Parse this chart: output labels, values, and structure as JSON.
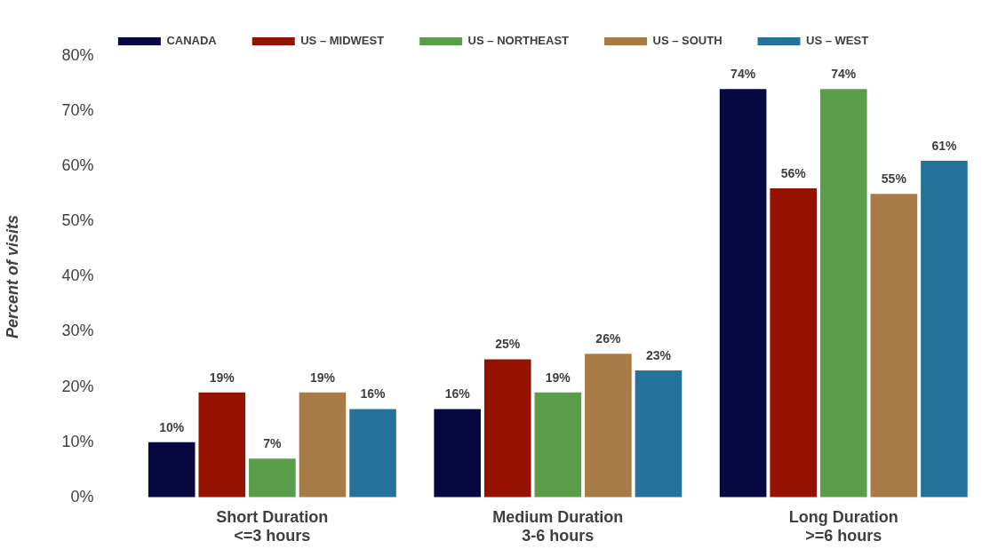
{
  "chart_data": {
    "type": "bar",
    "ylabel": "Percent of visits",
    "categories": [
      "Short Duration\n<=3 hours",
      "Medium Duration\n3-6 hours",
      "Long Duration\n>=6 hours"
    ],
    "series": [
      {
        "name": "CANADA",
        "color": "#070840",
        "values": [
          10,
          16,
          74
        ],
        "value_labels": [
          "10%",
          "16%",
          "74%"
        ]
      },
      {
        "name": "US – MIDWEST",
        "color": "#961200",
        "values": [
          19,
          25,
          56
        ],
        "value_labels": [
          "19%",
          "25%",
          "56%"
        ]
      },
      {
        "name": "US – NORTHEAST",
        "color": "#5a9e4c",
        "values": [
          7,
          19,
          74
        ],
        "value_labels": [
          "7%",
          "19%",
          "74%"
        ]
      },
      {
        "name": "US – SOUTH",
        "color": "#a87a45",
        "values": [
          19,
          26,
          55
        ],
        "value_labels": [
          "19%",
          "26%",
          "55%"
        ]
      },
      {
        "name": "US – WEST",
        "color": "#25729a",
        "values": [
          16,
          23,
          61
        ],
        "value_labels": [
          "16%",
          "23%",
          "61%"
        ]
      }
    ],
    "ylim": [
      0,
      80
    ],
    "yticks": [
      {
        "value": 0,
        "label": "0%"
      },
      {
        "value": 10,
        "label": "10%"
      },
      {
        "value": 20,
        "label": "20%"
      },
      {
        "value": 30,
        "label": "30%"
      },
      {
        "value": 40,
        "label": "40%"
      },
      {
        "value": 50,
        "label": "50%"
      },
      {
        "value": 60,
        "label": "60%"
      },
      {
        "value": 70,
        "label": "70%"
      },
      {
        "value": 80,
        "label": "80%"
      }
    ],
    "grid": false,
    "legend": "top"
  }
}
